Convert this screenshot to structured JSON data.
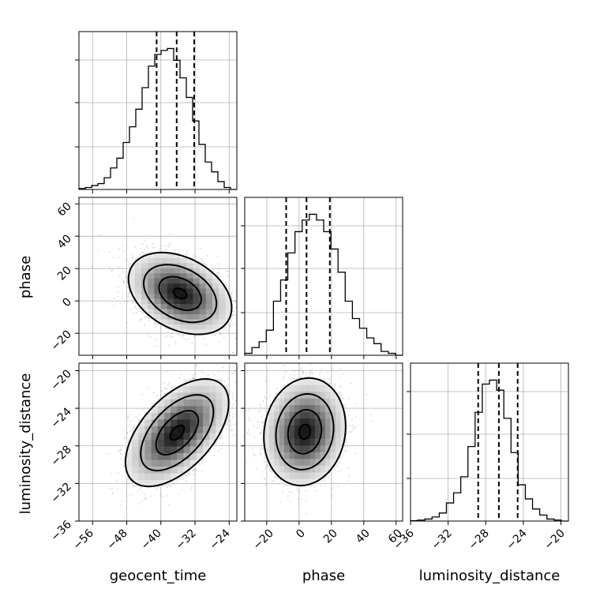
{
  "chart_data": {
    "type": "corner",
    "grid": true,
    "parameters": [
      "geocent_time",
      "phase",
      "luminosity_distance"
    ],
    "x_ticks": {
      "geocent_time": [
        "−56",
        "−48",
        "−40",
        "−32",
        "−24"
      ],
      "phase": [
        "−20",
        "0",
        "20",
        "40",
        "60"
      ],
      "luminosity_distance": [
        "−36",
        "−32",
        "−28",
        "−24",
        "−20"
      ]
    },
    "y_ticks": {
      "phase": [
        "60",
        "40",
        "20",
        "0",
        "−20"
      ],
      "luminosity_distance": [
        "−20",
        "−24",
        "−28",
        "−32",
        "−36"
      ]
    },
    "ranges": {
      "geocent_time": [
        -59.2,
        -22.2
      ],
      "phase": [
        -33.6,
        64.0
      ],
      "luminosity_distance": [
        -36.0,
        -19.2
      ]
    },
    "quantiles": {
      "geocent_time": [
        -41.0,
        -36.3,
        -32.2
      ],
      "phase": [
        -8.0,
        4.6,
        19.0
      ],
      "luminosity_distance": [
        -28.8,
        -26.6,
        -24.6
      ]
    },
    "histograms": {
      "geocent_time": [
        0.5,
        1,
        2,
        3,
        6,
        11,
        16,
        24,
        32,
        41,
        52,
        63,
        69,
        71,
        72,
        66,
        57,
        47,
        35,
        23,
        14,
        9,
        4,
        1,
        0
      ],
      "phase": [
        1,
        4,
        7,
        13,
        28,
        39,
        53,
        64,
        70,
        73,
        70,
        64,
        55,
        43,
        28,
        19,
        14,
        9,
        6,
        2,
        1,
        0
      ],
      "luminosity_distance": [
        0.2,
        0.5,
        1,
        2,
        4,
        9,
        14,
        22,
        37,
        54,
        68,
        70,
        65,
        51,
        34,
        18,
        11,
        6,
        3,
        1,
        0.5,
        0
      ]
    },
    "densities": {
      "phase_vs_geocent_time": {
        "mean": [
          -35.5,
          4.6
        ],
        "sd": [
          5.5,
          11.5
        ],
        "rho": -0.35,
        "contour_scales": [
          0.28,
          0.9,
          1.55,
          2.2
        ]
      },
      "luminosity_distance_vs_geocent_time": {
        "mean": [
          -36.2,
          -26.6
        ],
        "sd": [
          5.5,
          2.6
        ],
        "rho": 0.55,
        "contour_scales": [
          0.3,
          0.9,
          1.55,
          2.2
        ]
      },
      "luminosity_distance_vs_phase": {
        "mean": [
          3.5,
          -26.5
        ],
        "sd": [
          11.5,
          2.6
        ],
        "rho": 0.1,
        "contour_scales": [
          0.3,
          0.9,
          1.55,
          2.2
        ]
      }
    }
  }
}
